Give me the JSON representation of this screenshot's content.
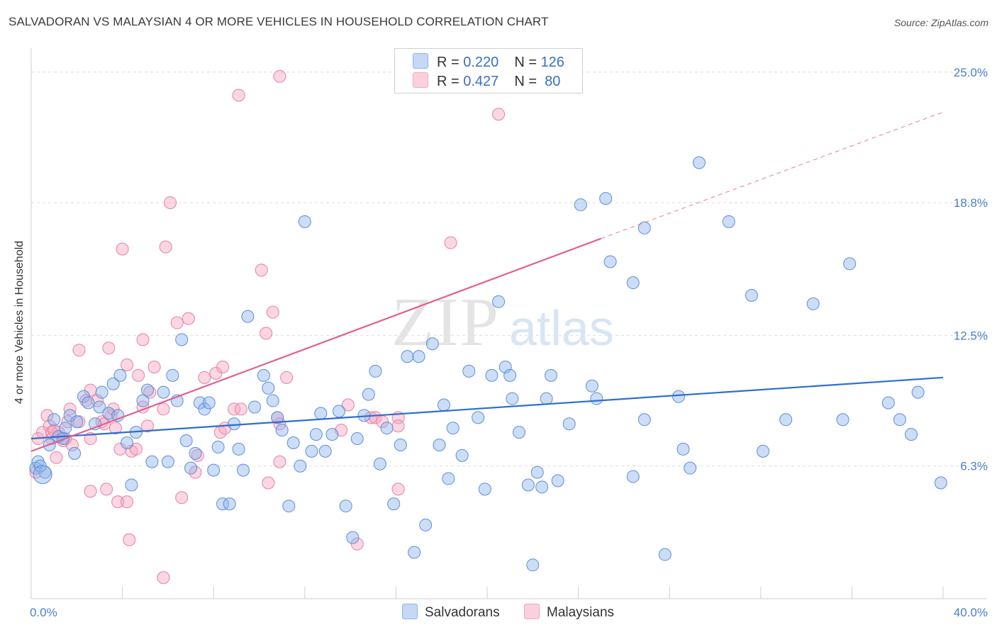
{
  "title": "SALVADORAN VS MALAYSIAN 4 OR MORE VEHICLES IN HOUSEHOLD CORRELATION CHART",
  "source": "Source: ZipAtlas.com",
  "watermark": {
    "zip": "ZIP",
    "atlas": "atlas"
  },
  "legend": {
    "rows": [
      {
        "r_label": "R = ",
        "r_value": "0.220",
        "n_label": "N = ",
        "n_value": "126",
        "color": "#8fb4ea"
      },
      {
        "r_label": "R = ",
        "r_value": "0.427",
        "n_label": "N = ",
        "n_value": " 80",
        "color": "#f4a7c0"
      }
    ]
  },
  "bottom_legend": [
    {
      "label": "Salvadorans",
      "color": "#8fb4ea"
    },
    {
      "label": "Malaysians",
      "color": "#f4a7c0"
    }
  ],
  "chart_data": {
    "type": "scatter",
    "title": "SALVADORAN VS MALAYSIAN 4 OR MORE VEHICLES IN HOUSEHOLD CORRELATION CHART",
    "xlabel": "",
    "ylabel": "4 or more Vehicles in Household",
    "xlim": [
      0,
      40
    ],
    "ylim": [
      0,
      25.9
    ],
    "x_tick_labels": [
      {
        "value": 0,
        "label": "0.0%"
      },
      {
        "value": 40,
        "label": "40.0%"
      }
    ],
    "y_tick_labels": [
      {
        "value": 6.3,
        "label": "6.3%"
      },
      {
        "value": 12.5,
        "label": "12.5%"
      },
      {
        "value": 18.8,
        "label": "18.8%"
      },
      {
        "value": 25.0,
        "label": "25.0%"
      }
    ],
    "series": [
      {
        "name": "Salvadorans",
        "color": "#8fb4ea",
        "stroke": "#5b8fd9",
        "trend": {
          "x0": 0,
          "y0": 7.6,
          "x1": 40,
          "y1": 10.5,
          "color": "#2d6fcf"
        },
        "points": [
          [
            0.2,
            6.2
          ],
          [
            0.3,
            6.5
          ],
          [
            0.6,
            6.0
          ],
          [
            0.8,
            7.3
          ],
          [
            1.0,
            8.5
          ],
          [
            1.2,
            7.7
          ],
          [
            1.5,
            8.1
          ],
          [
            1.7,
            8.7
          ],
          [
            1.9,
            6.9
          ],
          [
            2.0,
            8.4
          ],
          [
            2.3,
            9.6
          ],
          [
            2.5,
            9.3
          ],
          [
            2.8,
            8.3
          ],
          [
            3.0,
            9.1
          ],
          [
            3.1,
            9.8
          ],
          [
            3.4,
            8.8
          ],
          [
            3.6,
            10.2
          ],
          [
            3.8,
            8.7
          ],
          [
            3.9,
            10.6
          ],
          [
            4.2,
            7.4
          ],
          [
            4.4,
            5.4
          ],
          [
            4.6,
            7.9
          ],
          [
            4.9,
            9.4
          ],
          [
            5.1,
            9.9
          ],
          [
            5.3,
            6.5
          ],
          [
            5.8,
            9.8
          ],
          [
            6.0,
            6.5
          ],
          [
            6.2,
            10.6
          ],
          [
            6.4,
            9.4
          ],
          [
            6.6,
            12.3
          ],
          [
            6.8,
            7.5
          ],
          [
            7.0,
            6.2
          ],
          [
            7.2,
            6.9
          ],
          [
            7.4,
            9.3
          ],
          [
            7.6,
            9.0
          ],
          [
            7.8,
            9.3
          ],
          [
            8.0,
            6.1
          ],
          [
            8.2,
            7.2
          ],
          [
            8.4,
            4.5
          ],
          [
            8.7,
            4.5
          ],
          [
            8.9,
            8.3
          ],
          [
            9.1,
            7.1
          ],
          [
            9.3,
            6.1
          ],
          [
            9.5,
            13.4
          ],
          [
            9.8,
            9.1
          ],
          [
            10.2,
            10.6
          ],
          [
            10.4,
            10.0
          ],
          [
            10.6,
            9.4
          ],
          [
            10.8,
            8.6
          ],
          [
            11.0,
            8.0
          ],
          [
            11.3,
            4.4
          ],
          [
            11.5,
            7.4
          ],
          [
            11.8,
            6.3
          ],
          [
            12.0,
            17.9
          ],
          [
            12.3,
            7.0
          ],
          [
            12.5,
            7.8
          ],
          [
            12.7,
            8.8
          ],
          [
            12.9,
            7.0
          ],
          [
            13.2,
            7.8
          ],
          [
            13.5,
            8.9
          ],
          [
            13.8,
            4.4
          ],
          [
            14.1,
            2.9
          ],
          [
            14.3,
            7.6
          ],
          [
            14.6,
            8.7
          ],
          [
            14.8,
            9.7
          ],
          [
            15.1,
            10.8
          ],
          [
            15.3,
            6.4
          ],
          [
            15.6,
            8.1
          ],
          [
            15.9,
            4.5
          ],
          [
            16.2,
            7.3
          ],
          [
            16.5,
            11.5
          ],
          [
            16.8,
            2.2
          ],
          [
            17.0,
            11.5
          ],
          [
            17.3,
            3.5
          ],
          [
            17.6,
            12.1
          ],
          [
            17.9,
            7.3
          ],
          [
            18.1,
            9.2
          ],
          [
            18.3,
            5.7
          ],
          [
            18.5,
            8.1
          ],
          [
            18.9,
            6.8
          ],
          [
            19.2,
            10.8
          ],
          [
            19.6,
            8.6
          ],
          [
            19.9,
            5.2
          ],
          [
            20.2,
            10.6
          ],
          [
            20.5,
            14.1
          ],
          [
            20.8,
            11.0
          ],
          [
            21.0,
            10.6
          ],
          [
            21.1,
            9.5
          ],
          [
            21.4,
            7.9
          ],
          [
            21.8,
            5.4
          ],
          [
            22.0,
            1.6
          ],
          [
            22.2,
            6.0
          ],
          [
            22.4,
            5.3
          ],
          [
            22.6,
            9.5
          ],
          [
            22.8,
            10.6
          ],
          [
            23.1,
            5.6
          ],
          [
            23.6,
            8.3
          ],
          [
            24.1,
            18.7
          ],
          [
            24.6,
            10.1
          ],
          [
            24.8,
            9.5
          ],
          [
            25.2,
            19.0
          ],
          [
            25.4,
            16.0
          ],
          [
            26.4,
            15.0
          ],
          [
            26.4,
            5.8
          ],
          [
            26.9,
            17.6
          ],
          [
            26.9,
            8.5
          ],
          [
            27.8,
            2.1
          ],
          [
            28.4,
            9.6
          ],
          [
            28.6,
            7.1
          ],
          [
            28.9,
            6.2
          ],
          [
            29.3,
            20.7
          ],
          [
            30.6,
            17.9
          ],
          [
            31.6,
            14.4
          ],
          [
            32.1,
            7.0
          ],
          [
            33.1,
            8.5
          ],
          [
            34.3,
            14.0
          ],
          [
            35.6,
            8.5
          ],
          [
            35.9,
            15.9
          ],
          [
            37.6,
            9.3
          ],
          [
            38.1,
            8.5
          ],
          [
            38.6,
            7.8
          ],
          [
            38.9,
            9.8
          ],
          [
            39.9,
            5.5
          ],
          [
            0.4,
            6.3
          ],
          [
            0.5,
            5.9
          ],
          [
            1.4,
            7.6
          ]
        ],
        "sizes_large": [
          [
            0.3,
            6.3
          ],
          [
            0.5,
            5.9
          ]
        ]
      },
      {
        "name": "Malaysians",
        "color": "#f4a7c0",
        "stroke": "#e87fa3",
        "trend": {
          "x0": 0,
          "y0": 7.0,
          "x1": 25,
          "y1": 17.1,
          "x2": 40,
          "y2": 23.1,
          "color": "#e0608d"
        },
        "points": [
          [
            0.2,
            6.0
          ],
          [
            0.3,
            7.6
          ],
          [
            0.5,
            7.9
          ],
          [
            0.7,
            8.7
          ],
          [
            0.8,
            8.2
          ],
          [
            0.9,
            7.6
          ],
          [
            1.1,
            6.7
          ],
          [
            1.2,
            7.9
          ],
          [
            1.4,
            7.5
          ],
          [
            1.6,
            8.4
          ],
          [
            1.7,
            9.0
          ],
          [
            1.8,
            7.3
          ],
          [
            2.1,
            8.4
          ],
          [
            2.1,
            11.8
          ],
          [
            2.4,
            9.4
          ],
          [
            2.6,
            9.9
          ],
          [
            2.6,
            7.6
          ],
          [
            2.6,
            5.1
          ],
          [
            2.9,
            9.4
          ],
          [
            3.1,
            8.4
          ],
          [
            3.2,
            8.3
          ],
          [
            3.3,
            5.2
          ],
          [
            3.4,
            11.9
          ],
          [
            3.5,
            8.7
          ],
          [
            3.6,
            9.0
          ],
          [
            3.8,
            4.6
          ],
          [
            3.9,
            7.1
          ],
          [
            4.0,
            16.6
          ],
          [
            4.2,
            11.1
          ],
          [
            4.2,
            4.6
          ],
          [
            4.3,
            2.8
          ],
          [
            4.4,
            7.0
          ],
          [
            4.6,
            7.1
          ],
          [
            4.7,
            10.6
          ],
          [
            4.9,
            12.3
          ],
          [
            4.9,
            9.1
          ],
          [
            5.1,
            8.2
          ],
          [
            5.2,
            9.8
          ],
          [
            5.4,
            11.0
          ],
          [
            5.8,
            9.0
          ],
          [
            5.8,
            1.0
          ],
          [
            5.9,
            16.7
          ],
          [
            6.1,
            18.8
          ],
          [
            6.4,
            13.1
          ],
          [
            6.6,
            4.8
          ],
          [
            6.9,
            13.3
          ],
          [
            7.2,
            6.0
          ],
          [
            7.3,
            6.8
          ],
          [
            7.6,
            10.5
          ],
          [
            8.1,
            10.7
          ],
          [
            8.4,
            11.0
          ],
          [
            8.3,
            7.9
          ],
          [
            8.9,
            9.0
          ],
          [
            9.2,
            9.0
          ],
          [
            9.1,
            23.9
          ],
          [
            10.1,
            15.6
          ],
          [
            10.3,
            12.6
          ],
          [
            10.6,
            13.6
          ],
          [
            10.8,
            8.6
          ],
          [
            11.2,
            10.5
          ],
          [
            10.4,
            5.5
          ],
          [
            10.9,
            6.5
          ],
          [
            10.9,
            24.8
          ],
          [
            13.6,
            8.0
          ],
          [
            14.3,
            2.6
          ],
          [
            14.9,
            8.6
          ],
          [
            15.1,
            8.6
          ],
          [
            15.4,
            8.4
          ],
          [
            16.1,
            8.6
          ],
          [
            16.1,
            8.2
          ],
          [
            16.1,
            5.2
          ],
          [
            18.4,
            16.9
          ],
          [
            20.5,
            23.0
          ],
          [
            0.9,
            7.9
          ],
          [
            1.0,
            8.0
          ],
          [
            1.5,
            7.6
          ],
          [
            3.7,
            8.1
          ],
          [
            8.5,
            8.1
          ],
          [
            13.9,
            9.2
          ],
          [
            10.9,
            8.3
          ]
        ]
      }
    ]
  }
}
